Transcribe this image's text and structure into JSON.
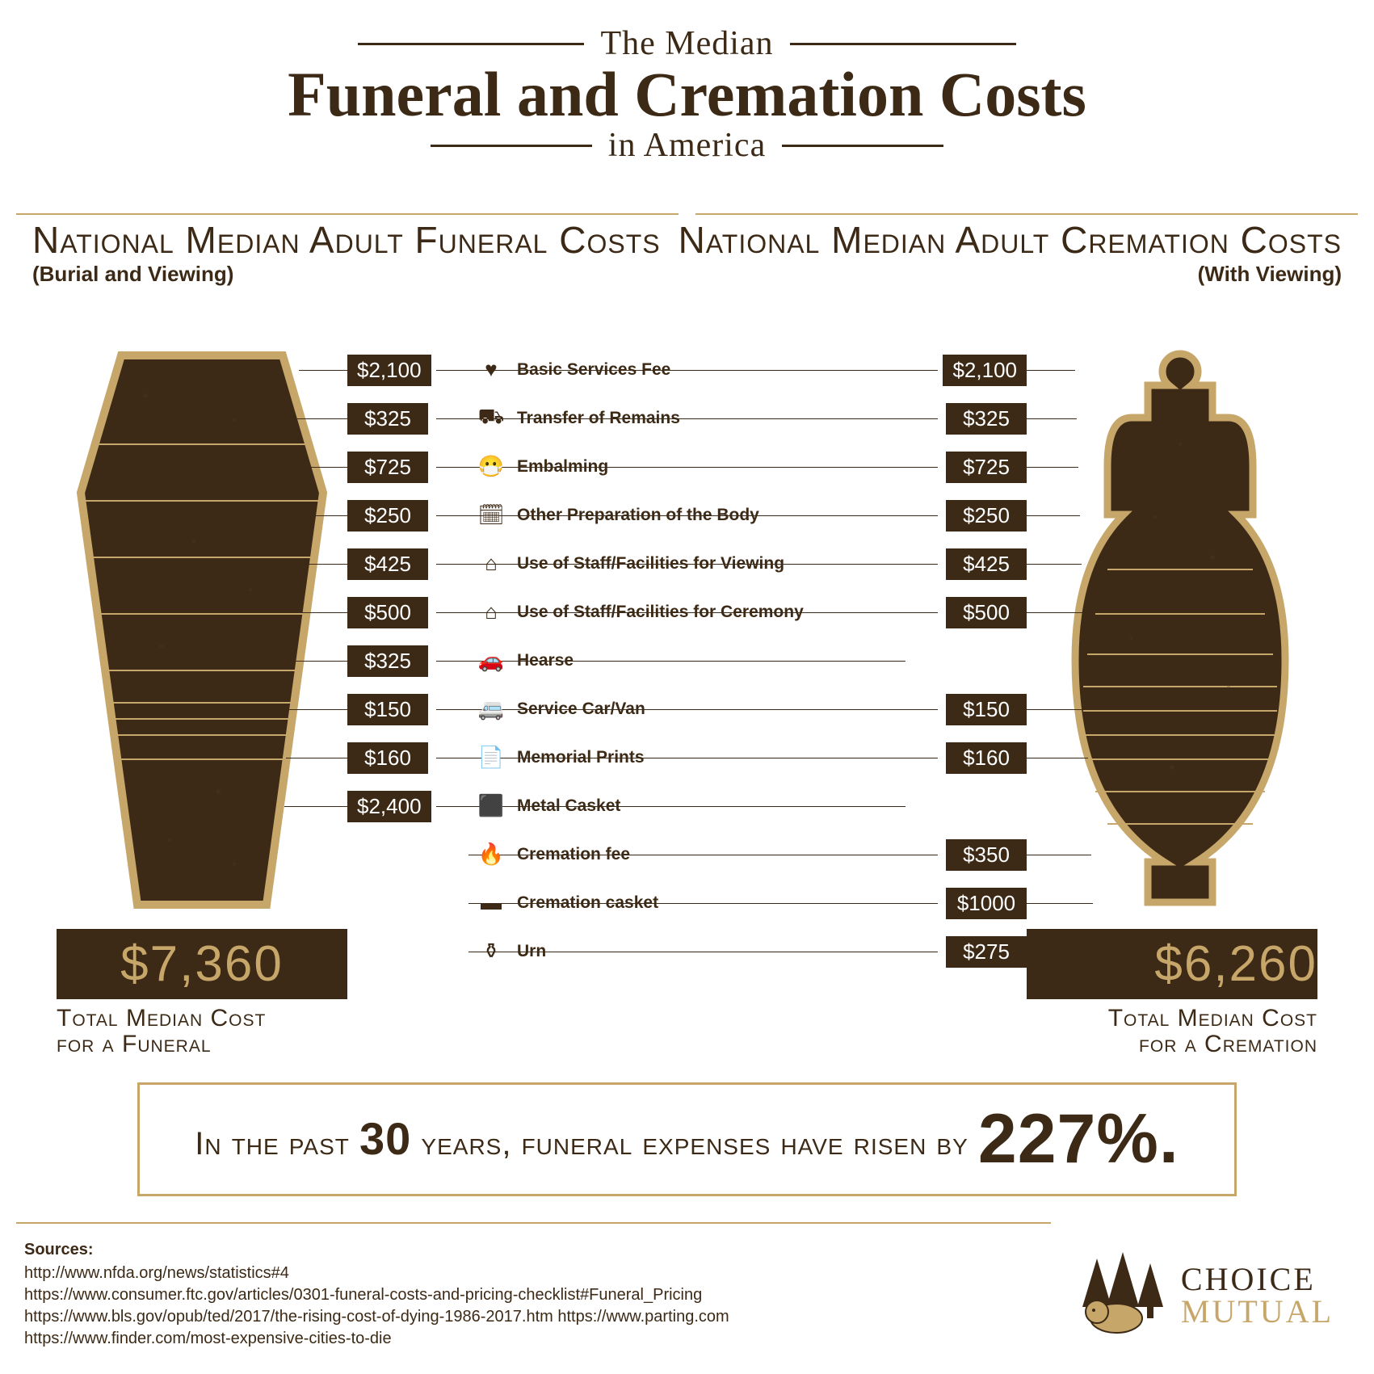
{
  "colors": {
    "dark": "#3c2a16",
    "gold": "#c7a66a",
    "white": "#ffffff"
  },
  "title": {
    "line1": "The Median",
    "line2": "Funeral and Cremation Costs",
    "line3": "in America"
  },
  "left_section": {
    "title": "National Median Adult Funeral Costs",
    "subtitle": "(Burial and Viewing)"
  },
  "right_section": {
    "title": "National Median Adult Cremation Costs",
    "subtitle": "(With Viewing)"
  },
  "totals": {
    "funeral": {
      "amount": "$7,360",
      "caption1": "Total Median Cost",
      "caption2": "for a Funeral"
    },
    "cremation": {
      "amount": "$6,260",
      "caption1": "Total Median Cost",
      "caption2": "for a Cremation"
    }
  },
  "rows": [
    {
      "label": "Basic Services Fee",
      "icon": "♥",
      "funeral": "$2,100",
      "cremation": "$2,100"
    },
    {
      "label": "Transfer of Remains",
      "icon": "⛟",
      "funeral": "$325",
      "cremation": "$325"
    },
    {
      "label": "Embalming",
      "icon": "😷",
      "funeral": "$725",
      "cremation": "$725"
    },
    {
      "label": "Other Preparation of the Body",
      "icon": "🗓",
      "funeral": "$250",
      "cremation": "$250"
    },
    {
      "label": "Use of Staff/Facilities for Viewing",
      "icon": "⌂",
      "funeral": "$425",
      "cremation": "$425"
    },
    {
      "label": "Use of Staff/Facilities for Ceremony",
      "icon": "⌂",
      "funeral": "$500",
      "cremation": "$500"
    },
    {
      "label": "Hearse",
      "icon": "🚗",
      "funeral": "$325",
      "cremation": null
    },
    {
      "label": "Service Car/Van",
      "icon": "🚐",
      "funeral": "$150",
      "cremation": "$150"
    },
    {
      "label": "Memorial Prints",
      "icon": "📄",
      "funeral": "$160",
      "cremation": "$160"
    },
    {
      "label": "Metal Casket",
      "icon": "⬛",
      "funeral": "$2,400",
      "cremation": null
    },
    {
      "label": "Cremation fee",
      "icon": "🔥",
      "funeral": null,
      "cremation": "$350"
    },
    {
      "label": "Cremation casket",
      "icon": "▬",
      "funeral": null,
      "cremation": "$1000"
    },
    {
      "label": "Urn",
      "icon": "⚱",
      "funeral": null,
      "cremation": "$275"
    }
  ],
  "stat": {
    "pre": "In the past",
    "years": "30",
    "mid": "years, funeral expenses have risen by",
    "pct": "227%."
  },
  "sources": {
    "heading": "Sources:",
    "lines": [
      "http://www.nfda.org/news/statistics#4",
      "https://www.consumer.ftc.gov/articles/0301-funeral-costs-and-pricing-checklist#Funeral_Pricing",
      "https://www.bls.gov/opub/ted/2017/the-rising-cost-of-dying-1986-2017.htm    https://www.parting.com",
      "https://www.finder.com/most-expensive-cities-to-die"
    ]
  },
  "logo": {
    "line1": "CHOICE",
    "line2": "MUTUAL"
  }
}
